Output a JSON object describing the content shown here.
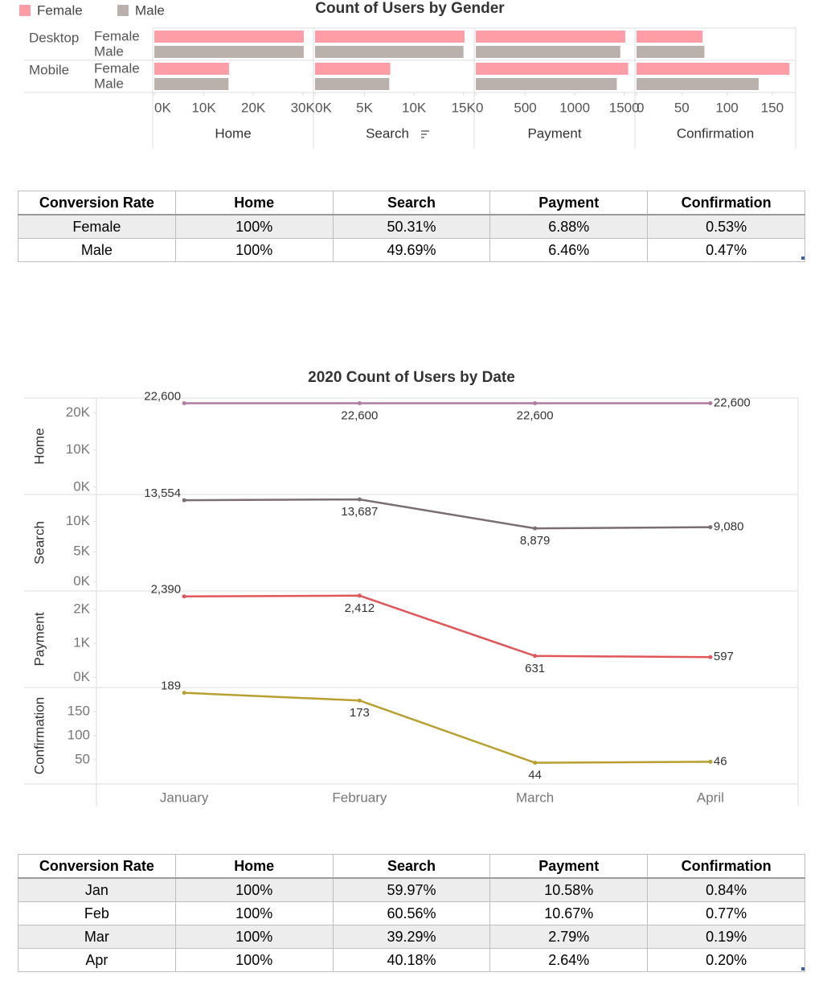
{
  "chart_data": [
    {
      "type": "bar",
      "title": "Count of Users by Gender",
      "groups": [
        "Desktop",
        "Mobile"
      ],
      "series": [
        {
          "name": "Female",
          "color": "#ff9da7"
        },
        {
          "name": "Male",
          "color": "#bab0ac"
        }
      ],
      "panels": [
        {
          "name": "Home",
          "xlim": [
            0,
            32000
          ],
          "xticks": [
            {
              "value": 0,
              "label": "0K"
            },
            {
              "value": 10000,
              "label": "10K"
            },
            {
              "value": 20000,
              "label": "20K"
            },
            {
              "value": 30000,
              "label": "30K"
            }
          ],
          "values": [
            [
              30200,
              15100
            ],
            [
              30200,
              15000
            ]
          ]
        },
        {
          "name": "Search",
          "xlim": [
            0,
            16000
          ],
          "xticks": [
            {
              "value": 0,
              "label": "0K"
            },
            {
              "value": 5000,
              "label": "5K"
            },
            {
              "value": 10000,
              "label": "10K"
            },
            {
              "value": 15000,
              "label": "15K"
            }
          ],
          "values": [
            [
              15100,
              7600
            ],
            [
              15000,
              7500
            ]
          ]
        },
        {
          "name": "Payment",
          "xlim": [
            0,
            1600
          ],
          "xticks": [
            0,
            500,
            1000,
            1500
          ],
          "values": [
            [
              1510,
              1540
            ],
            [
              1460,
              1425
            ]
          ]
        },
        {
          "name": "Confirmation",
          "xlim": [
            0,
            175
          ],
          "xticks": [
            0,
            50,
            100,
            150
          ],
          "values": [
            [
              73,
              169
            ],
            [
              75,
              135
            ]
          ]
        }
      ]
    },
    {
      "type": "line",
      "title": "2020 Count of Users by Date",
      "categories": [
        "January",
        "February",
        "March",
        "April"
      ],
      "panels": [
        {
          "name": "Home",
          "color": "#b07aa1",
          "values": [
            22600,
            22600,
            22600,
            22600
          ],
          "value_labels": [
            "22,600",
            "22,600",
            "22,600",
            "22,600"
          ],
          "ylim": [
            -2000,
            24000
          ],
          "yticks": [
            {
              "value": 0,
              "label": "0K"
            },
            {
              "value": 10000,
              "label": "10K"
            },
            {
              "value": 20000,
              "label": "20K"
            }
          ]
        },
        {
          "name": "Search",
          "color": "#7b6e72",
          "values": [
            13554,
            13687,
            8879,
            9080
          ],
          "value_labels": [
            "13,554",
            "13,687",
            "8,879",
            "9,080"
          ],
          "ylim": [
            -1500,
            14500
          ],
          "yticks": [
            {
              "value": 0,
              "label": "0K"
            },
            {
              "value": 5000,
              "label": "5K"
            },
            {
              "value": 10000,
              "label": "10K"
            }
          ]
        },
        {
          "name": "Payment",
          "color": "#e15759",
          "values": [
            2390,
            2412,
            631,
            597
          ],
          "value_labels": [
            "2,390",
            "2,412",
            "631",
            "597"
          ],
          "ylim": [
            -300,
            2550
          ],
          "yticks": [
            {
              "value": 0,
              "label": "0K"
            },
            {
              "value": 1000,
              "label": "1K"
            },
            {
              "value": 2000,
              "label": "2K"
            }
          ]
        },
        {
          "name": "Confirmation",
          "color": "#b8a030",
          "values": [
            189,
            173,
            44,
            46
          ],
          "ylim": [
            0,
            200
          ],
          "yticks": [
            50,
            100,
            150
          ]
        }
      ]
    }
  ],
  "tables": [
    {
      "header": [
        "Conversion Rate",
        "Home",
        "Search",
        "Payment",
        "Confirmation"
      ],
      "rows": [
        [
          "Female",
          "100%",
          "50.31%",
          "6.88%",
          "0.53%"
        ],
        [
          "Male",
          "100%",
          "49.69%",
          "6.46%",
          "0.47%"
        ]
      ]
    },
    {
      "header": [
        "Conversion Rate",
        "Home",
        "Search",
        "Payment",
        "Confirmation"
      ],
      "rows": [
        [
          "Jan",
          "100%",
          "59.97%",
          "10.58%",
          "0.84%"
        ],
        [
          "Feb",
          "100%",
          "60.56%",
          "10.67%",
          "0.77%"
        ],
        [
          "Mar",
          "100%",
          "39.29%",
          "2.79%",
          "0.19%"
        ],
        [
          "Apr",
          "100%",
          "40.18%",
          "2.64%",
          "0.20%"
        ]
      ]
    }
  ]
}
